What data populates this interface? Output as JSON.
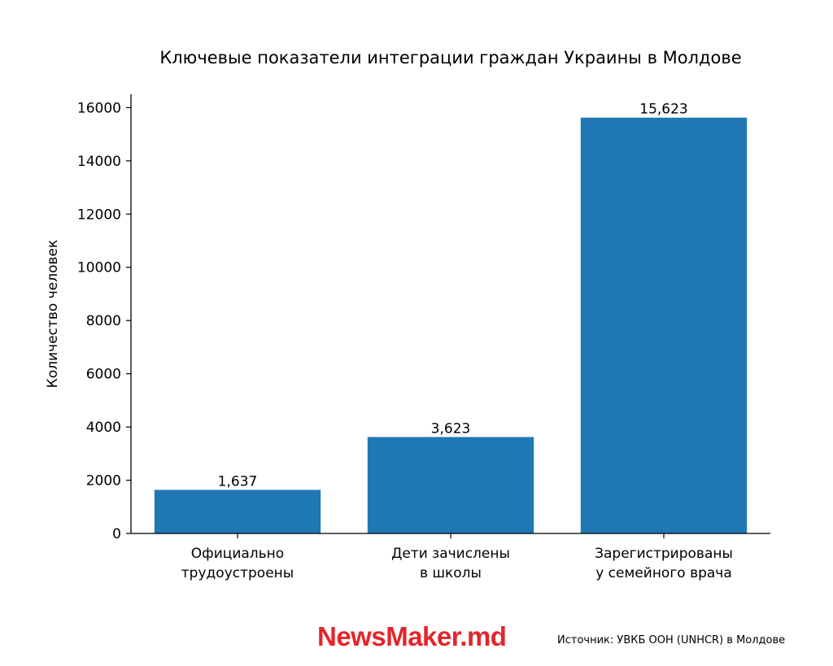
{
  "chart_data": {
    "type": "bar",
    "title": "Ключевые показатели интеграции граждан Украины в Молдове",
    "ylabel": "Количество человек",
    "xlabel": "",
    "categories": [
      [
        "Официально",
        "трудоустроены"
      ],
      [
        "Дети зачислены",
        "в школы"
      ],
      [
        "Зарегистрированы",
        "у семейного врача"
      ]
    ],
    "values": [
      1637,
      3623,
      15623
    ],
    "value_labels": [
      "1,637",
      "3,623",
      "15,623"
    ],
    "yticks": [
      0,
      2000,
      4000,
      6000,
      8000,
      10000,
      12000,
      14000,
      16000
    ],
    "ylim": [
      0,
      16500
    ],
    "grid": false,
    "bar_color": "#1f77b4"
  },
  "footer": {
    "logo": "NewsMaker.md",
    "source": "Источник: УВКБ ООН (UNHCR) в Молдове"
  }
}
